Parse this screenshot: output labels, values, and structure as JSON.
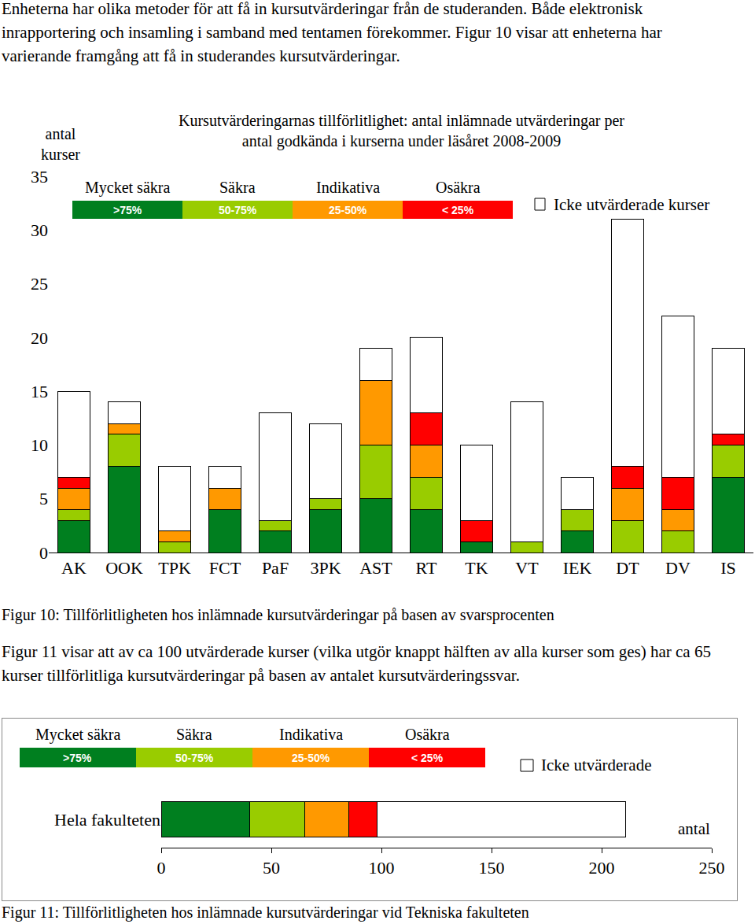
{
  "paragraphs": [
    "Enheterna har olika metoder för att få in kursutvärderingar från de studeranden. Både elektronisk inrapportering och insamling i samband med tentamen förekommer. Figur 10 visar att enheterna har varierande framgång att få in studerandes kursutvärderingar.",
    "Figur 11 visar att av ca 100 utvärderade kurser (vilka utgör knappt hälften av alla kurser som ges) har ca 65 kurser tillförlitliga kursutvärderingar på basen av antalet kursutvärderingssvar."
  ],
  "captions": [
    "Figur 10: Tillförlitligheten hos inlämnade kursutvärderingar på basen av svarsprocenten",
    "Figur 11: Tillförlitligheten hos inlämnade kursutvärderingar vid Tekniska fakulteten"
  ],
  "chart_data": [
    {
      "type": "bar",
      "stacked": true,
      "title": [
        "Kursutvärderingarnas tillförlitlighet: antal inlämnade utvärderingar per",
        "antal godkända i kurserna under läsåret 2008-2009"
      ],
      "y_label": [
        "antal",
        "kurser"
      ],
      "categories": [
        "AK",
        "OOK",
        "TPK",
        "FCT",
        "PaF",
        "3PK",
        "AST",
        "RT",
        "TK",
        "VT",
        "IEK",
        "DT",
        "DV",
        "IS"
      ],
      "series": [
        {
          "name": "Mycket säkra",
          "description": ">75%",
          "color": "#007f1f",
          "values": [
            3,
            8,
            0,
            4,
            2,
            4,
            5,
            4,
            1,
            0,
            2,
            0,
            0,
            7
          ]
        },
        {
          "name": "Säkra",
          "description": "50-75%",
          "color": "#99cc00",
          "values": [
            1,
            3,
            1,
            0,
            1,
            1,
            5,
            3,
            0,
            1,
            2,
            3,
            2,
            3
          ]
        },
        {
          "name": "Indikativa",
          "description": "25-50%",
          "color": "#ff9900",
          "values": [
            2,
            1,
            1,
            2,
            0,
            0,
            6,
            3,
            0,
            0,
            0,
            3,
            2,
            0
          ]
        },
        {
          "name": "Osäkra",
          "description": "< 25%",
          "color": "#ff0000",
          "values": [
            1,
            0,
            0,
            0,
            0,
            0,
            0,
            3,
            2,
            0,
            0,
            2,
            3,
            1
          ]
        },
        {
          "name": "Icke utvärderade kurser",
          "color": "#ffffff",
          "values": [
            8,
            2,
            6,
            2,
            10,
            7,
            3,
            7,
            7,
            13,
            3,
            23,
            15,
            8
          ]
        }
      ],
      "ylim": [
        0,
        35
      ],
      "yticks": [
        0,
        5,
        10,
        15,
        20,
        25,
        30,
        35
      ],
      "grid": false
    },
    {
      "type": "bar",
      "stacked": true,
      "orientation": "horizontal",
      "x_label": "antal",
      "categories": [
        "Hela fakulteten"
      ],
      "series": [
        {
          "name": "Mycket säkra",
          "description": ">75%",
          "color": "#007f1f",
          "values": [
            40
          ]
        },
        {
          "name": "Säkra",
          "description": "50-75%",
          "color": "#99cc00",
          "values": [
            25
          ]
        },
        {
          "name": "Indikativa",
          "description": "25-50%",
          "color": "#ff9900",
          "values": [
            20
          ]
        },
        {
          "name": "Osäkra",
          "description": "< 25%",
          "color": "#ff0000",
          "values": [
            13
          ]
        },
        {
          "name": "Icke utvärderade",
          "color": "#ffffff",
          "values": [
            113
          ]
        }
      ],
      "xlim": [
        0,
        250
      ],
      "xticks": [
        0,
        50,
        100,
        150,
        200,
        250
      ],
      "grid": false
    }
  ]
}
